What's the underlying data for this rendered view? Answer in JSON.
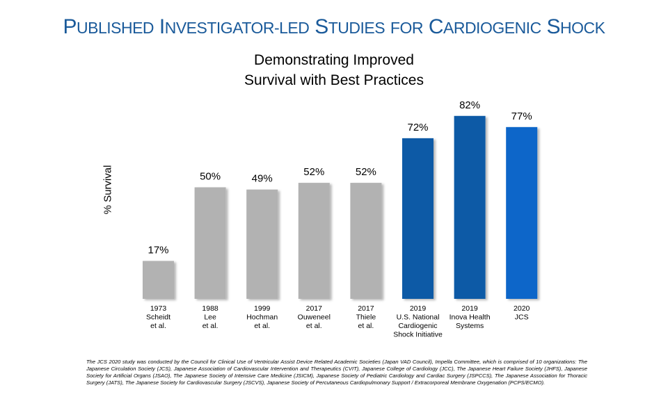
{
  "title": {
    "words": [
      {
        "cap": "P",
        "rest": "UBLISHED"
      },
      {
        "cap": "I",
        "rest": "NVESTIGATOR-LED"
      },
      {
        "cap": "S",
        "rest": "TUDIES"
      },
      {
        "cap": "",
        "rest": "FOR"
      },
      {
        "cap": "C",
        "rest": "ARDIOGENIC"
      },
      {
        "cap": "S",
        "rest": "HOCK"
      }
    ]
  },
  "subtitle_line1": "Demonstrating Improved",
  "subtitle_line2": "Survival with Best Practices",
  "footnote": "The JCS 2020 study was conducted by the Council for Clinical Use of Ventricular Assist Device Related Academic Societies (Japan VAD Council), Impella Committee, which is comprised of 10 organizations: The Japanese Circulation Society (JCS), Japanese Association of Cardiovascular Intervention and Therapeutics (CVIT), Japanese College of Cardiology (JCC), The Japanese Heart Failure Society (JHFS), Japanese Society for Artificial Organs (JSAO), The Japanese Society of Intensive Care Medicine (JSICM), Japanese Society of Pediatric Cardiology and Cardiac Surgery (JSPCCS), The Japanese Association for Thoracic Surgery (JATS), The Japanese Society for Cardiovascular Surgery (JSCVS), Japanese Society of Percutaneous Cardiopulmonary Support / Extracorporeal Membrane Oxygenation (PCPS/ECMO).",
  "chart_data": {
    "type": "bar",
    "title": "Demonstrating Improved Survival with Best Practices",
    "xlabel": "",
    "ylabel": "% Survival",
    "ylim": [
      0,
      100
    ],
    "grid": false,
    "categories": [
      [
        "1973",
        "Scheidt",
        "et al."
      ],
      [
        "1988",
        "Lee",
        "et al."
      ],
      [
        "1999",
        "Hochman",
        "et al."
      ],
      [
        "2017",
        "Ouweneel",
        "et al."
      ],
      [
        "2017",
        "Thiele",
        "et al."
      ],
      [
        "2019",
        "U.S. National",
        "Cardiogenic",
        "Shock Initiative"
      ],
      [
        "2019",
        "Inova Health",
        "Systems"
      ],
      [
        "2020",
        "JCS"
      ]
    ],
    "values": [
      17,
      50,
      49,
      52,
      52,
      72,
      82,
      77
    ],
    "data_labels": [
      "17%",
      "50%",
      "49%",
      "52%",
      "52%",
      "72%",
      "82%",
      "77%"
    ],
    "colors": [
      "#b2b2b2",
      "#b2b2b2",
      "#b2b2b2",
      "#b2b2b2",
      "#b2b2b2",
      "#0a5aa6",
      "#0a5aa6",
      "#0d66c9"
    ]
  }
}
